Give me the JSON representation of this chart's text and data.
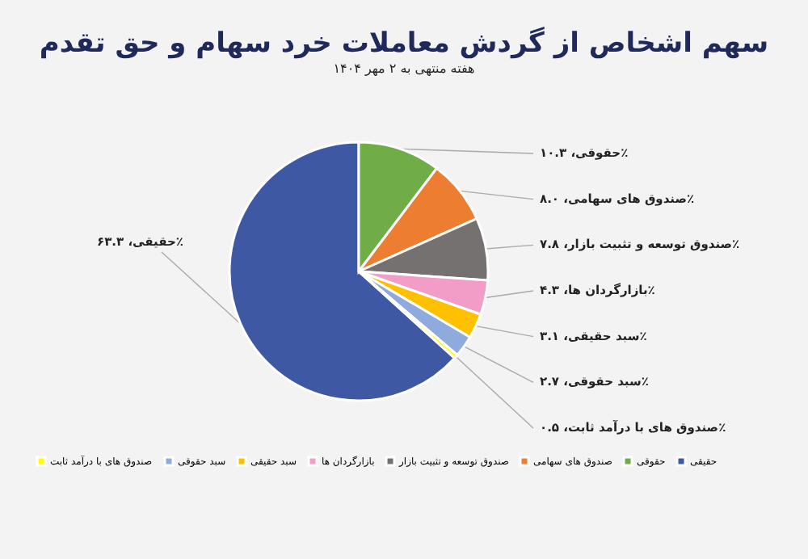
{
  "chart_data": {
    "type": "pie",
    "title": "سهم اشخاص از گردش معاملات خرد سهام و حق تقدم",
    "subtitle": "هفته منتهی به ۲ مهر ۱۴۰۴",
    "categories": [
      "حقیقی",
      "حقوقی",
      "صندوق های سهامی",
      "صندوق توسعه و تثبیت بازار",
      "بازارگردان ها",
      "سبد حقیقی",
      "سبد حقوقی",
      "صندوق های با درآمد ثابت"
    ],
    "values": [
      63.3,
      10.3,
      8.0,
      7.8,
      4.3,
      3.1,
      2.7,
      0.5
    ],
    "colors": [
      "#3e58a3",
      "#70ad47",
      "#ed7d31",
      "#767171",
      "#f29cc8",
      "#ffc000",
      "#8faadc",
      "#ffff00"
    ],
    "value_labels": [
      "حقیقی، ۶۳.۳٪",
      "حقوقی، ۱۰.۳٪",
      "صندوق های سهامی، ۸.۰٪",
      "صندوق توسعه و تثبیت بازار، ۷.۸٪",
      "بازارگردان ها، ۴.۳٪",
      "سبد حقیقی، ۳.۱٪",
      "سبد حقوقی، ۲.۷٪",
      "صندوق های با درآمد ثابت، ۰.۵٪"
    ],
    "legend": "bottom"
  }
}
